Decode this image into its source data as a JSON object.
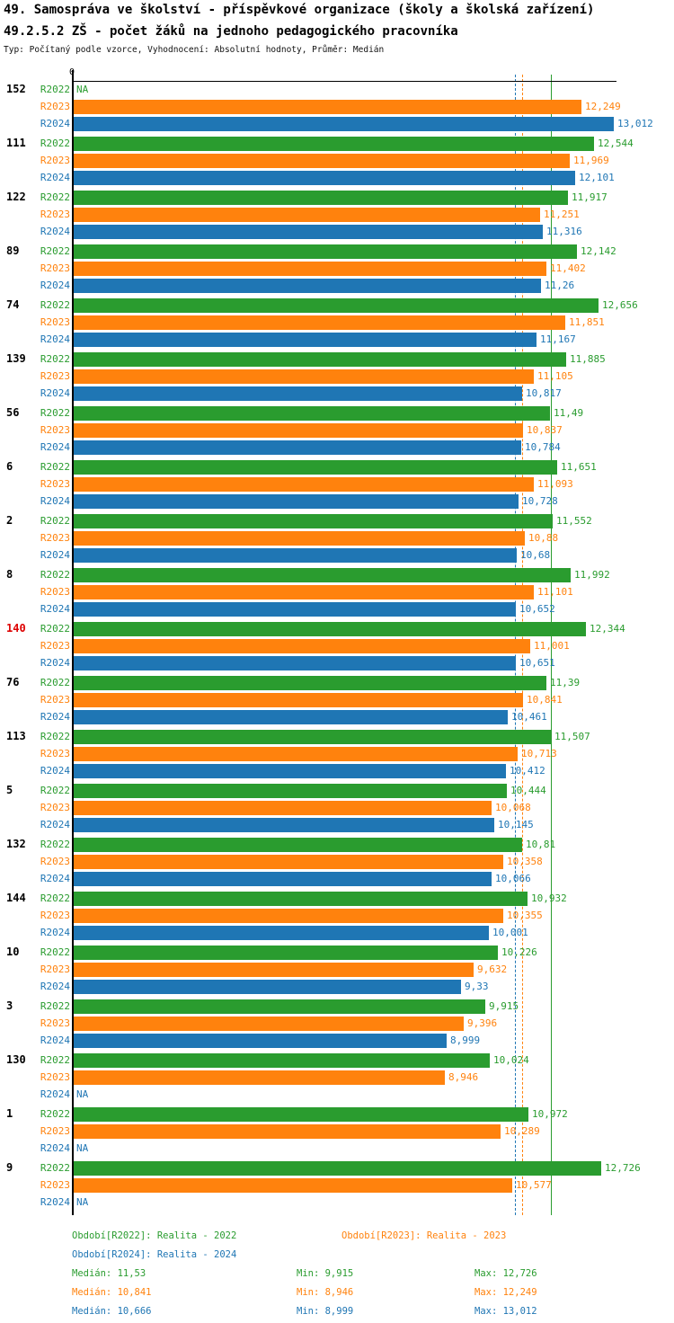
{
  "header": {
    "title_line1": "49. Samospráva ve školství - příspěvkové organizace (školy a školská zařízení)",
    "title_line2": "49.2.5.2 ZŠ - počet žáků na jednoho pedagogického pracovníka",
    "subtitle": "Typ: Počítaný podle vzorce, Vyhodnocení: Absolutní hodnoty, Průměr: Medián"
  },
  "colors": {
    "r2022": "#2a9c2f",
    "r2023": "#ff820d",
    "r2024": "#1f76b4",
    "highlight_group": "#dd0000",
    "axis": "#000000"
  },
  "chart_data": {
    "type": "bar",
    "orientation": "horizontal",
    "title": "49.2.5.2 ZŠ - počet žáků na jednoho pedagogického pracovníka",
    "value_axis": {
      "zero_label": "0",
      "min": 0,
      "approx_max": 13.2,
      "grid": false
    },
    "series_years": [
      "R2022",
      "R2023",
      "R2024"
    ],
    "na_label": "NA",
    "median_lines": [
      {
        "year": "R2022",
        "value": 11.53,
        "style": "solid"
      },
      {
        "year": "R2023",
        "value": 10.841,
        "style": "dashed"
      },
      {
        "year": "R2024",
        "value": 10.666,
        "style": "dashed"
      }
    ],
    "groups": [
      {
        "name": "152",
        "highlight": false,
        "bars": [
          {
            "year": "R2022",
            "display": "NA",
            "value": null
          },
          {
            "year": "R2023",
            "display": "12,249",
            "value": 12.249
          },
          {
            "year": "R2024",
            "display": "13,012",
            "value": 13.012
          }
        ]
      },
      {
        "name": "111",
        "highlight": false,
        "bars": [
          {
            "year": "R2022",
            "display": "12,544",
            "value": 12.544
          },
          {
            "year": "R2023",
            "display": "11,969",
            "value": 11.969
          },
          {
            "year": "R2024",
            "display": "12,101",
            "value": 12.101
          }
        ]
      },
      {
        "name": "122",
        "highlight": false,
        "bars": [
          {
            "year": "R2022",
            "display": "11,917",
            "value": 11.917
          },
          {
            "year": "R2023",
            "display": "11,251",
            "value": 11.251
          },
          {
            "year": "R2024",
            "display": "11,316",
            "value": 11.316
          }
        ]
      },
      {
        "name": "89",
        "highlight": false,
        "bars": [
          {
            "year": "R2022",
            "display": "12,142",
            "value": 12.142
          },
          {
            "year": "R2023",
            "display": "11,402",
            "value": 11.402
          },
          {
            "year": "R2024",
            "display": "11,26",
            "value": 11.26
          }
        ]
      },
      {
        "name": "74",
        "highlight": false,
        "bars": [
          {
            "year": "R2022",
            "display": "12,656",
            "value": 12.656
          },
          {
            "year": "R2023",
            "display": "11,851",
            "value": 11.851
          },
          {
            "year": "R2024",
            "display": "11,167",
            "value": 11.167
          }
        ]
      },
      {
        "name": "139",
        "highlight": false,
        "bars": [
          {
            "year": "R2022",
            "display": "11,885",
            "value": 11.885
          },
          {
            "year": "R2023",
            "display": "11,105",
            "value": 11.105
          },
          {
            "year": "R2024",
            "display": "10,817",
            "value": 10.817
          }
        ]
      },
      {
        "name": "56",
        "highlight": false,
        "bars": [
          {
            "year": "R2022",
            "display": "11,49",
            "value": 11.49
          },
          {
            "year": "R2023",
            "display": "10,837",
            "value": 10.837
          },
          {
            "year": "R2024",
            "display": "10,784",
            "value": 10.784
          }
        ]
      },
      {
        "name": "6",
        "highlight": false,
        "bars": [
          {
            "year": "R2022",
            "display": "11,651",
            "value": 11.651
          },
          {
            "year": "R2023",
            "display": "11,093",
            "value": 11.093
          },
          {
            "year": "R2024",
            "display": "10,728",
            "value": 10.728
          }
        ]
      },
      {
        "name": "2",
        "highlight": false,
        "bars": [
          {
            "year": "R2022",
            "display": "11,552",
            "value": 11.552
          },
          {
            "year": "R2023",
            "display": "10,88",
            "value": 10.88
          },
          {
            "year": "R2024",
            "display": "10,68",
            "value": 10.68
          }
        ]
      },
      {
        "name": "8",
        "highlight": false,
        "bars": [
          {
            "year": "R2022",
            "display": "11,992",
            "value": 11.992
          },
          {
            "year": "R2023",
            "display": "11,101",
            "value": 11.101
          },
          {
            "year": "R2024",
            "display": "10,652",
            "value": 10.652
          }
        ]
      },
      {
        "name": "140",
        "highlight": true,
        "bars": [
          {
            "year": "R2022",
            "display": "12,344",
            "value": 12.344
          },
          {
            "year": "R2023",
            "display": "11,001",
            "value": 11.001
          },
          {
            "year": "R2024",
            "display": "10,651",
            "value": 10.651
          }
        ]
      },
      {
        "name": "76",
        "highlight": false,
        "bars": [
          {
            "year": "R2022",
            "display": "11,39",
            "value": 11.39
          },
          {
            "year": "R2023",
            "display": "10,841",
            "value": 10.841
          },
          {
            "year": "R2024",
            "display": "10,461",
            "value": 10.461
          }
        ]
      },
      {
        "name": "113",
        "highlight": false,
        "bars": [
          {
            "year": "R2022",
            "display": "11,507",
            "value": 11.507
          },
          {
            "year": "R2023",
            "display": "10,713",
            "value": 10.713
          },
          {
            "year": "R2024",
            "display": "10,412",
            "value": 10.412
          }
        ]
      },
      {
        "name": "5",
        "highlight": false,
        "bars": [
          {
            "year": "R2022",
            "display": "10,444",
            "value": 10.444
          },
          {
            "year": "R2023",
            "display": "10,068",
            "value": 10.068
          },
          {
            "year": "R2024",
            "display": "10,145",
            "value": 10.145
          }
        ]
      },
      {
        "name": "132",
        "highlight": false,
        "bars": [
          {
            "year": "R2022",
            "display": "10,81",
            "value": 10.81
          },
          {
            "year": "R2023",
            "display": "10,358",
            "value": 10.358
          },
          {
            "year": "R2024",
            "display": "10,066",
            "value": 10.066
          }
        ]
      },
      {
        "name": "144",
        "highlight": false,
        "bars": [
          {
            "year": "R2022",
            "display": "10,932",
            "value": 10.932
          },
          {
            "year": "R2023",
            "display": "10,355",
            "value": 10.355
          },
          {
            "year": "R2024",
            "display": "10,001",
            "value": 10.001
          }
        ]
      },
      {
        "name": "10",
        "highlight": false,
        "bars": [
          {
            "year": "R2022",
            "display": "10,226",
            "value": 10.226
          },
          {
            "year": "R2023",
            "display": "9,632",
            "value": 9.632
          },
          {
            "year": "R2024",
            "display": "9,33",
            "value": 9.33
          }
        ]
      },
      {
        "name": "3",
        "highlight": false,
        "bars": [
          {
            "year": "R2022",
            "display": "9,915",
            "value": 9.915
          },
          {
            "year": "R2023",
            "display": "9,396",
            "value": 9.396
          },
          {
            "year": "R2024",
            "display": "8,999",
            "value": 8.999
          }
        ]
      },
      {
        "name": "130",
        "highlight": false,
        "bars": [
          {
            "year": "R2022",
            "display": "10,024",
            "value": 10.024
          },
          {
            "year": "R2023",
            "display": "8,946",
            "value": 8.946
          },
          {
            "year": "R2024",
            "display": "NA",
            "value": null
          }
        ]
      },
      {
        "name": "1",
        "highlight": false,
        "bars": [
          {
            "year": "R2022",
            "display": "10,972",
            "value": 10.972
          },
          {
            "year": "R2023",
            "display": "10,289",
            "value": 10.289
          },
          {
            "year": "R2024",
            "display": "NA",
            "value": null
          }
        ]
      },
      {
        "name": "9",
        "highlight": false,
        "bars": [
          {
            "year": "R2022",
            "display": "12,726",
            "value": 12.726
          },
          {
            "year": "R2023",
            "display": "10,577",
            "value": 10.577
          },
          {
            "year": "R2024",
            "display": "NA",
            "value": null
          }
        ]
      }
    ],
    "legend": {
      "periods": [
        {
          "year": "R2022",
          "label": "Období[R2022]: Realita - 2022"
        },
        {
          "year": "R2023",
          "label": "Období[R2023]: Realita - 2023"
        },
        {
          "year": "R2024",
          "label": "Období[R2024]: Realita - 2024"
        }
      ],
      "stats": [
        {
          "year": "R2022",
          "median": "Medián: 11,53",
          "min": "Min: 9,915",
          "max": "Max: 12,726"
        },
        {
          "year": "R2023",
          "median": "Medián: 10,841",
          "min": "Min: 8,946",
          "max": "Max: 12,249"
        },
        {
          "year": "R2024",
          "median": "Medián: 10,666",
          "min": "Min: 8,999",
          "max": "Max: 13,012"
        }
      ]
    }
  }
}
